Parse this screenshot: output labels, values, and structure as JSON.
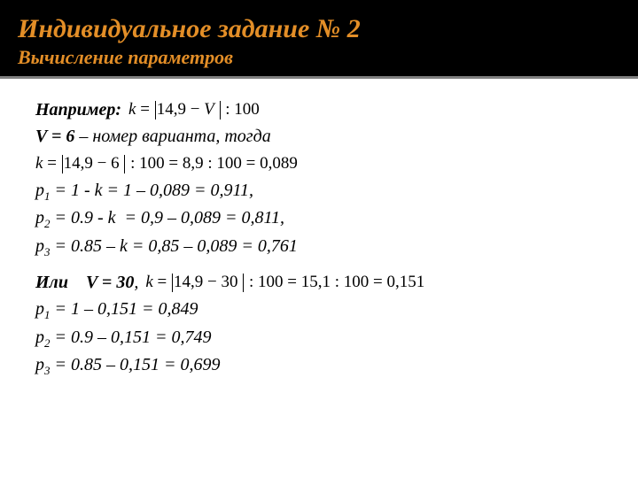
{
  "header": {
    "title": "Индивидуальное задание № 2",
    "subtitle": "Вычисление параметров"
  },
  "content": {
    "example_label": "Например:",
    "formula_k_general": "k = |14,9 − V | : 100",
    "variant_line": "V = 6 – номер варианта, тогда",
    "formula_k_v6": "k = |14,9 − 6 | : 100 = 8,9 : 100 = 0,089",
    "p1_v6": "p₁ = 1 - k = 1 – 0,089 = 0,911,",
    "p2_v6": "p₂ = 0.9 - k  = 0,9 – 0,089 = 0,811,",
    "p3_v6": "p₃ = 0.85 – k = 0,85 – 0,089 = 0,761",
    "or_label": "Или    V = 30,",
    "formula_k_v30": "k = |14,9 − 30 | : 100 = 15,1 : 100 = 0,151",
    "p1_v30": "p₁ = 1 – 0,151 = 0,849",
    "p2_v30": "p₂ = 0.9 – 0,151 = 0,749",
    "p3_v30": "p₃ = 0.85 – 0,151 = 0,699"
  },
  "colors": {
    "header_bg": "#000000",
    "title_color": "#e38e27",
    "divider": "#808080",
    "body_bg": "#ffffff",
    "text": "#000000"
  }
}
